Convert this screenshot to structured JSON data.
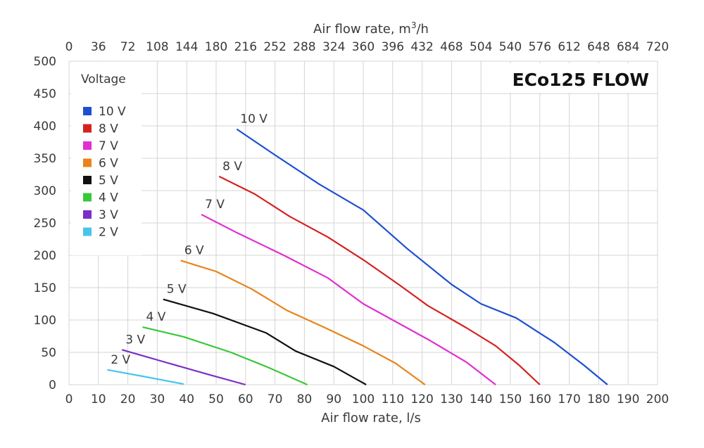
{
  "chart_data": {
    "type": "line",
    "title": "ECo125 FLOW",
    "xlabel": "Air flow rate, l/s",
    "x2label": "Air flow rate, m³/h",
    "ylabel": "",
    "xlim": [
      0,
      200
    ],
    "ylim": [
      0,
      500
    ],
    "xticks": [
      "0",
      "10",
      "20",
      "30",
      "40",
      "50",
      "60",
      "70",
      "80",
      "90",
      "100",
      "110",
      "120",
      "130",
      "140",
      "150",
      "160",
      "170",
      "180",
      "190",
      "200"
    ],
    "x2ticks": [
      "0",
      "36",
      "72",
      "108",
      "144",
      "180",
      "216",
      "252",
      "288",
      "324",
      "360",
      "396",
      "432",
      "468",
      "504",
      "540",
      "576",
      "612",
      "648",
      "684",
      "720"
    ],
    "yticks": [
      "0",
      "50",
      "100",
      "150",
      "200",
      "250",
      "300",
      "350",
      "400",
      "450",
      "500"
    ],
    "grid": true,
    "legend_title": "Voltage",
    "legend_position": "top-left",
    "series": [
      {
        "name": "10 V",
        "label": "10 V",
        "color": "#1f4fd0",
        "x": [
          57,
          70,
          85,
          100,
          115,
          130,
          140,
          152,
          165,
          175,
          183
        ],
        "y": [
          395,
          355,
          310,
          270,
          210,
          155,
          125,
          103,
          65,
          30,
          0
        ]
      },
      {
        "name": "8 V",
        "label": "8 V",
        "color": "#d42222",
        "x": [
          51,
          63,
          75,
          88,
          100,
          112,
          122,
          135,
          145,
          153,
          160
        ],
        "y": [
          322,
          295,
          260,
          228,
          193,
          155,
          122,
          88,
          60,
          30,
          0
        ]
      },
      {
        "name": "7 V",
        "label": "7 V",
        "color": "#e030d0",
        "x": [
          45,
          57,
          73,
          88,
          100,
          112,
          122,
          135,
          145
        ],
        "y": [
          263,
          235,
          200,
          165,
          125,
          95,
          70,
          35,
          0
        ]
      },
      {
        "name": "6 V",
        "label": "6 V",
        "color": "#e8841a",
        "x": [
          38,
          50,
          62,
          74,
          87,
          100,
          111,
          121
        ],
        "y": [
          192,
          175,
          148,
          115,
          88,
          60,
          33,
          0
        ]
      },
      {
        "name": "5 V",
        "label": "5 V",
        "color": "#111111",
        "x": [
          32,
          49,
          67,
          77,
          90,
          101
        ],
        "y": [
          132,
          110,
          80,
          52,
          28,
          0
        ]
      },
      {
        "name": "4 V",
        "label": "4 V",
        "color": "#3ac83a",
        "x": [
          25,
          39,
          55,
          67,
          81
        ],
        "y": [
          89,
          74,
          50,
          28,
          0
        ]
      },
      {
        "name": "3 V",
        "label": "3 V",
        "color": "#7b2fc8",
        "x": [
          18,
          31,
          48,
          60
        ],
        "y": [
          54,
          37,
          15,
          0
        ]
      },
      {
        "name": "2 V",
        "label": "2 V",
        "color": "#48c4ec",
        "x": [
          13,
          25,
          39
        ],
        "y": [
          23,
          13,
          1
        ]
      }
    ]
  }
}
